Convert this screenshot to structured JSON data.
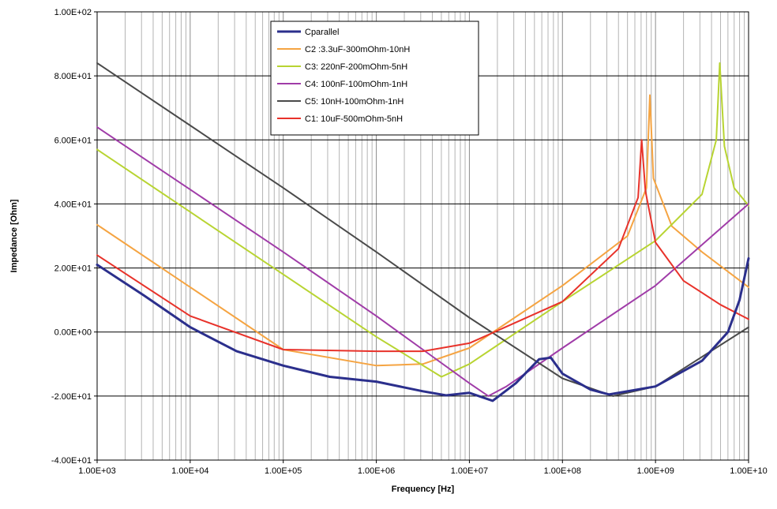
{
  "chart_data": {
    "type": "line",
    "xlabel": "Frequency [Hz]",
    "ylabel": "Impedance [Ohm]",
    "x_scale": "log",
    "xlim": [
      "1.00E+03",
      "1.00E+10"
    ],
    "ylim": [
      -40,
      100
    ],
    "x_ticks": [
      "1.00E+03",
      "1.00E+04",
      "1.00E+05",
      "1.00E+06",
      "1.00E+07",
      "1.00E+08",
      "1.00E+09",
      "1.00E+10"
    ],
    "y_ticks": [
      "1.00E+02",
      "8.00E+01",
      "6.00E+01",
      "4.00E+01",
      "2.00E+01",
      "0.00E+00",
      "-2.00E+01",
      "-4.00E+01"
    ],
    "grid": true,
    "legend_position": "top-center",
    "series": [
      {
        "name": "Cparallel",
        "color": "#2b2f8c",
        "points": [
          [
            "1.00E+03",
            21
          ],
          [
            "3.16E+03",
            11.5
          ],
          [
            "1.00E+04",
            1.5
          ],
          [
            "3.16E+04",
            -6
          ],
          [
            "1.00E+05",
            -10.5
          ],
          [
            "3.16E+05",
            -14
          ],
          [
            "1.00E+06",
            -15.5
          ],
          [
            "3.16E+06",
            -18.5
          ],
          [
            "5.62E+06",
            -19.8
          ],
          [
            "1.00E+07",
            -19
          ],
          [
            "1.78E+07",
            -21.5
          ],
          [
            "3.16E+07",
            -16
          ],
          [
            "5.62E+07",
            -8.5
          ],
          [
            "7.50E+07",
            -8
          ],
          [
            "1.00E+08",
            -13
          ],
          [
            "2.00E+08",
            -18
          ],
          [
            "3.16E+08",
            -19.5
          ],
          [
            "1.00E+09",
            -17
          ],
          [
            "3.16E+09",
            -9
          ],
          [
            "6.00E+09",
            0
          ],
          [
            "8.00E+09",
            10
          ],
          [
            "1.00E+10",
            23
          ]
        ]
      },
      {
        "name": "C2 :3.3uF-300mOhm-10nH",
        "color": "#f5a442",
        "points": [
          [
            "1.00E+03",
            33.5
          ],
          [
            "1.00E+04",
            14
          ],
          [
            "1.00E+05",
            -5.5
          ],
          [
            "1.00E+06",
            -10.5
          ],
          [
            "3.16E+06",
            -10
          ],
          [
            "1.00E+07",
            -5
          ],
          [
            "1.00E+08",
            14.5
          ],
          [
            "5.00E+08",
            30
          ],
          [
            "8.00E+08",
            45
          ],
          [
            "8.70E+08",
            74
          ],
          [
            "9.50E+08",
            48
          ],
          [
            "1.50E+09",
            33
          ],
          [
            "3.16E+09",
            25
          ],
          [
            "1.00E+10",
            14
          ]
        ]
      },
      {
        "name": "C3: 220nF-200mOhm-5nH",
        "color": "#b8d432",
        "points": [
          [
            "1.00E+03",
            57
          ],
          [
            "1.00E+04",
            37.5
          ],
          [
            "1.00E+05",
            18
          ],
          [
            "1.00E+06",
            -1.5
          ],
          [
            "5.00E+06",
            -14
          ],
          [
            "1.00E+07",
            -10
          ],
          [
            "1.00E+08",
            9.5
          ],
          [
            "1.00E+09",
            28.5
          ],
          [
            "3.16E+09",
            43
          ],
          [
            "4.50E+09",
            60
          ],
          [
            "4.90E+09",
            84
          ],
          [
            "5.50E+09",
            58
          ],
          [
            "7.00E+09",
            45
          ],
          [
            "1.00E+10",
            39.5
          ]
        ]
      },
      {
        "name": "C4: 100nF-100mOhm-1nH",
        "color": "#a03ca8",
        "points": [
          [
            "1.00E+03",
            64
          ],
          [
            "1.00E+04",
            44.5
          ],
          [
            "1.00E+05",
            25
          ],
          [
            "1.00E+06",
            5
          ],
          [
            "3.16E+06",
            -5.5
          ],
          [
            "1.00E+07",
            -16
          ],
          [
            "1.60E+07",
            -20
          ],
          [
            "2.50E+07",
            -17
          ],
          [
            "1.00E+08",
            -5
          ],
          [
            "1.00E+09",
            14.5
          ],
          [
            "1.00E+10",
            40
          ]
        ]
      },
      {
        "name": "C5: 10nH-100mOhm-1nH",
        "color": "#4a4a4a",
        "points": [
          [
            "1.00E+03",
            84
          ],
          [
            "1.00E+04",
            64.5
          ],
          [
            "1.00E+05",
            45
          ],
          [
            "1.00E+06",
            25
          ],
          [
            "1.00E+07",
            4.5
          ],
          [
            "1.00E+08",
            -14.5
          ],
          [
            "3.50E+08",
            -20
          ],
          [
            "1.00E+09",
            -17
          ],
          [
            "1.00E+10",
            1.5
          ]
        ]
      },
      {
        "name": "C1: 10uF-500mOhm-5nH",
        "color": "#e8322a",
        "points": [
          [
            "1.00E+03",
            24
          ],
          [
            "1.00E+04",
            5
          ],
          [
            "1.00E+05",
            -5.5
          ],
          [
            "1.00E+06",
            -6
          ],
          [
            "3.16E+06",
            -6
          ],
          [
            "1.00E+07",
            -3.5
          ],
          [
            "1.00E+08",
            9.5
          ],
          [
            "4.00E+08",
            26
          ],
          [
            "6.50E+08",
            42
          ],
          [
            "7.10E+08",
            60
          ],
          [
            "7.80E+08",
            44
          ],
          [
            "1.00E+09",
            28
          ],
          [
            "2.00E+09",
            16
          ],
          [
            "5.00E+09",
            8.5
          ],
          [
            "1.00E+10",
            4
          ]
        ]
      }
    ]
  }
}
